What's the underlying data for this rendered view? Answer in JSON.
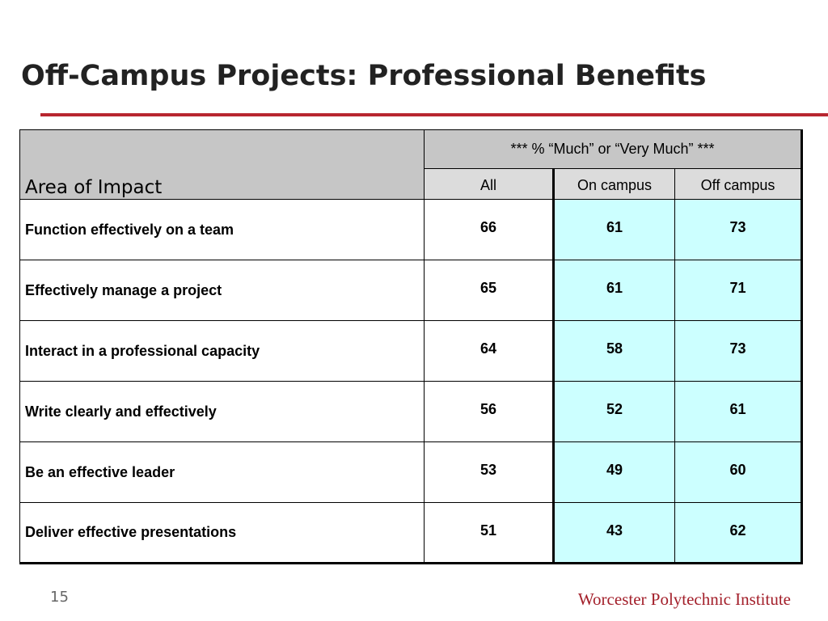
{
  "slide": {
    "title": "Off-Campus Projects:  Professional Benefits",
    "accent_color": "#b8262f",
    "page_number": "15",
    "footer": "Worcester Polytechnic Institute"
  },
  "table": {
    "area_header": "Area of Impact",
    "group_header": "*** % “Much” or “Very Much” ***",
    "columns": [
      "All",
      "On campus",
      "Off campus"
    ],
    "rows": [
      {
        "label": "Function effectively on a team",
        "all": "66",
        "on": "61",
        "off": "73"
      },
      {
        "label": "Effectively manage a project",
        "all": "65",
        "on": "61",
        "off": "71"
      },
      {
        "label": "Interact in a professional capacity",
        "all": "64",
        "on": "58",
        "off": "73"
      },
      {
        "label": "Write clearly and effectively",
        "all": "56",
        "on": "52",
        "off": "61"
      },
      {
        "label": "Be an effective leader",
        "all": "53",
        "on": "49",
        "off": "60"
      },
      {
        "label": "Deliver effective presentations",
        "all": "51",
        "on": "43",
        "off": "62"
      }
    ],
    "highlight_color": "#ccffff",
    "header_color": "#c6c6c6"
  }
}
